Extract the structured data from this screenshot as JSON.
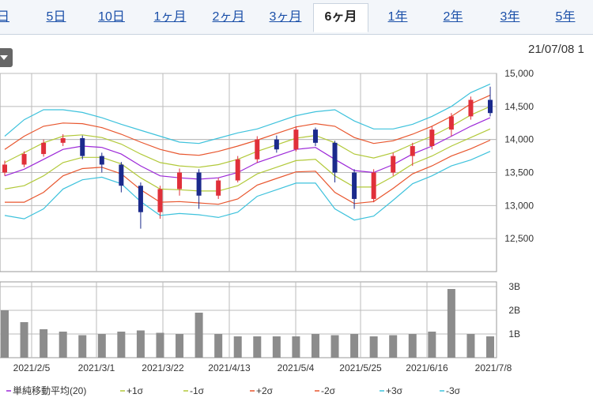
{
  "tabs": [
    "日",
    "5日",
    "10日",
    "1ヶ月",
    "2ヶ月",
    "3ヶ月",
    "6ヶ月",
    "1年",
    "2年",
    "3年",
    "5年"
  ],
  "active_tab": "6ヶ月",
  "date_label": "21/07/08 1",
  "colors": {
    "candle_up": "#e0303a",
    "candle_down": "#1b2a8c",
    "sma": "#9c28d8",
    "sigma1": "#b2c93a",
    "sigma2": "#e8562e",
    "sigma3": "#3ec2dc",
    "volume": "#8c8c8c",
    "grid": "#bbbbbb"
  },
  "chart_data": [
    {
      "type": "line",
      "title": "",
      "ylim": [
        12000,
        15000
      ],
      "yticks": [
        "12,500",
        "13,000",
        "13,500",
        "14,000",
        "14,500",
        "15,000"
      ],
      "x": [
        "2021/1/15",
        "2021/1/22",
        "2021/1/29",
        "2021/2/5",
        "2021/2/12",
        "2021/2/19",
        "2021/2/26",
        "2021/3/1",
        "2021/3/8",
        "2021/3/15",
        "2021/3/22",
        "2021/3/29",
        "2021/4/5",
        "2021/4/13",
        "2021/4/20",
        "2021/4/27",
        "2021/5/4",
        "2021/5/11",
        "2021/5/18",
        "2021/5/25",
        "2021/6/1",
        "2021/6/8",
        "2021/6/16",
        "2021/6/23",
        "2021/6/30",
        "2021/7/8"
      ],
      "series": [
        {
          "name": "単純移動平均(20)",
          "values": [
            13450,
            13550,
            13700,
            13850,
            13900,
            13880,
            13780,
            13600,
            13450,
            13420,
            13400,
            13420,
            13500,
            13650,
            13750,
            13850,
            13880,
            13700,
            13530,
            13500,
            13620,
            13780,
            13900,
            14050,
            14200,
            14330
          ]
        },
        {
          "name": "+1σ",
          "values": [
            13650,
            13800,
            13950,
            14050,
            14070,
            14030,
            13930,
            13780,
            13650,
            13600,
            13580,
            13620,
            13700,
            13820,
            13920,
            14020,
            14060,
            13950,
            13780,
            13720,
            13800,
            13930,
            14050,
            14200,
            14370,
            14500
          ]
        },
        {
          "name": "-1σ",
          "values": [
            13250,
            13300,
            13450,
            13650,
            13730,
            13730,
            13630,
            13420,
            13250,
            13240,
            13220,
            13220,
            13300,
            13480,
            13580,
            13680,
            13700,
            13450,
            13280,
            13280,
            13440,
            13630,
            13750,
            13900,
            14030,
            14160
          ]
        },
        {
          "name": "+2σ",
          "values": [
            13850,
            14050,
            14200,
            14250,
            14240,
            14180,
            14080,
            13960,
            13850,
            13780,
            13760,
            13820,
            13900,
            13990,
            14090,
            14190,
            14240,
            14200,
            14030,
            13940,
            13980,
            14080,
            14200,
            14350,
            14540,
            14670
          ]
        },
        {
          "name": "-2σ",
          "values": [
            13050,
            13050,
            13200,
            13450,
            13560,
            13580,
            13480,
            13240,
            13050,
            13060,
            13040,
            13020,
            13100,
            13310,
            13410,
            13510,
            13520,
            13200,
            13030,
            13060,
            13260,
            13480,
            13600,
            13750,
            13860,
            13990
          ]
        },
        {
          "name": "+3σ",
          "values": [
            14050,
            14300,
            14450,
            14450,
            14410,
            14330,
            14230,
            14140,
            14050,
            13960,
            13940,
            14020,
            14100,
            14160,
            14260,
            14360,
            14420,
            14450,
            14280,
            14160,
            14160,
            14230,
            14350,
            14500,
            14710,
            14840
          ]
        },
        {
          "name": "-3σ",
          "values": [
            12850,
            12800,
            12950,
            13250,
            13390,
            13430,
            13330,
            13060,
            12850,
            12880,
            12860,
            12820,
            12900,
            13140,
            13240,
            13340,
            13340,
            12950,
            12780,
            12840,
            13080,
            13330,
            13450,
            13600,
            13690,
            13820
          ]
        }
      ],
      "candles": [
        {
          "x": "2021/1/15",
          "open": 13500,
          "close": 13620,
          "high": 13680,
          "low": 13450
        },
        {
          "x": "2021/1/22",
          "open": 13620,
          "close": 13780,
          "high": 13820,
          "low": 13580
        },
        {
          "x": "2021/1/29",
          "open": 13780,
          "close": 13950,
          "high": 14000,
          "low": 13740
        },
        {
          "x": "2021/2/5",
          "open": 13950,
          "close": 14020,
          "high": 14080,
          "low": 13900
        },
        {
          "x": "2021/2/12",
          "open": 14020,
          "close": 13750,
          "high": 14060,
          "low": 13700
        },
        {
          "x": "2021/2/19",
          "open": 13750,
          "close": 13620,
          "high": 13800,
          "low": 13500
        },
        {
          "x": "2021/2/26",
          "open": 13620,
          "close": 13300,
          "high": 13660,
          "low": 13200
        },
        {
          "x": "2021/3/1",
          "open": 13300,
          "close": 12900,
          "high": 13350,
          "low": 12650
        },
        {
          "x": "2021/3/8",
          "open": 12900,
          "close": 13250,
          "high": 13300,
          "low": 12800
        },
        {
          "x": "2021/3/15",
          "open": 13250,
          "close": 13500,
          "high": 13560,
          "low": 13150
        },
        {
          "x": "2021/3/22",
          "open": 13500,
          "close": 13150,
          "high": 13550,
          "low": 12950
        },
        {
          "x": "2021/3/29",
          "open": 13150,
          "close": 13380,
          "high": 13420,
          "low": 13100
        },
        {
          "x": "2021/4/5",
          "open": 13380,
          "close": 13700,
          "high": 13750,
          "low": 13350
        },
        {
          "x": "2021/4/13",
          "open": 13700,
          "close": 14000,
          "high": 14050,
          "low": 13650
        },
        {
          "x": "2021/4/20",
          "open": 14000,
          "close": 13850,
          "high": 14060,
          "low": 13800
        },
        {
          "x": "2021/4/27",
          "open": 13850,
          "close": 14150,
          "high": 14200,
          "low": 13820
        },
        {
          "x": "2021/5/4",
          "open": 14150,
          "close": 13950,
          "high": 14180,
          "low": 13900
        },
        {
          "x": "2021/5/11",
          "open": 13950,
          "close": 13500,
          "high": 13980,
          "low": 13350
        },
        {
          "x": "2021/5/18",
          "open": 13500,
          "close": 13100,
          "high": 13550,
          "low": 12950
        },
        {
          "x": "2021/5/25",
          "open": 13100,
          "close": 13500,
          "high": 13550,
          "low": 13050
        },
        {
          "x": "2021/6/1",
          "open": 13500,
          "close": 13750,
          "high": 13800,
          "low": 13450
        },
        {
          "x": "2021/6/8",
          "open": 13750,
          "close": 13900,
          "high": 13950,
          "low": 13600
        },
        {
          "x": "2021/6/16",
          "open": 13900,
          "close": 14150,
          "high": 14200,
          "low": 13850
        },
        {
          "x": "2021/6/23",
          "open": 14150,
          "close": 14350,
          "high": 14400,
          "low": 14050
        },
        {
          "x": "2021/6/30",
          "open": 14350,
          "close": 14600,
          "high": 14650,
          "low": 14300
        },
        {
          "x": "2021/7/8",
          "open": 14600,
          "close": 14400,
          "high": 14800,
          "low": 14350
        }
      ]
    },
    {
      "type": "bar",
      "title": "",
      "yticks": [
        "1B",
        "2B",
        "3B"
      ],
      "ylim": [
        0,
        3.2
      ],
      "categories": [
        "2021/1/15",
        "2021/1/22",
        "2021/1/29",
        "2021/2/5",
        "2021/2/12",
        "2021/2/19",
        "2021/2/26",
        "2021/3/1",
        "2021/3/8",
        "2021/3/15",
        "2021/3/22",
        "2021/3/29",
        "2021/4/5",
        "2021/4/13",
        "2021/4/20",
        "2021/4/27",
        "2021/5/4",
        "2021/5/11",
        "2021/5/18",
        "2021/5/25",
        "2021/6/1",
        "2021/6/8",
        "2021/6/16",
        "2021/6/23",
        "2021/6/30",
        "2021/7/8"
      ],
      "values": [
        2.0,
        1.5,
        1.2,
        1.1,
        0.95,
        1.0,
        1.1,
        1.15,
        1.05,
        1.0,
        1.9,
        1.0,
        0.9,
        0.9,
        0.9,
        0.9,
        1.0,
        0.95,
        1.0,
        0.9,
        0.95,
        1.0,
        1.1,
        2.9,
        1.0,
        0.9
      ]
    }
  ],
  "xaxis_labels": [
    "2021/2/5",
    "2021/3/1",
    "2021/3/22",
    "2021/4/13",
    "2021/5/4",
    "2021/5/25",
    "2021/6/16",
    "2021/7/8"
  ],
  "legend": [
    {
      "label": "単純移動平均(20)",
      "color_key": "sma"
    },
    {
      "label": "+1σ",
      "color_key": "sigma1"
    },
    {
      "label": "-1σ",
      "color_key": "sigma1"
    },
    {
      "label": "+2σ",
      "color_key": "sigma2"
    },
    {
      "label": "-2σ",
      "color_key": "sigma2"
    },
    {
      "label": "+3σ",
      "color_key": "sigma3"
    },
    {
      "label": "-3σ",
      "color_key": "sigma3"
    }
  ]
}
